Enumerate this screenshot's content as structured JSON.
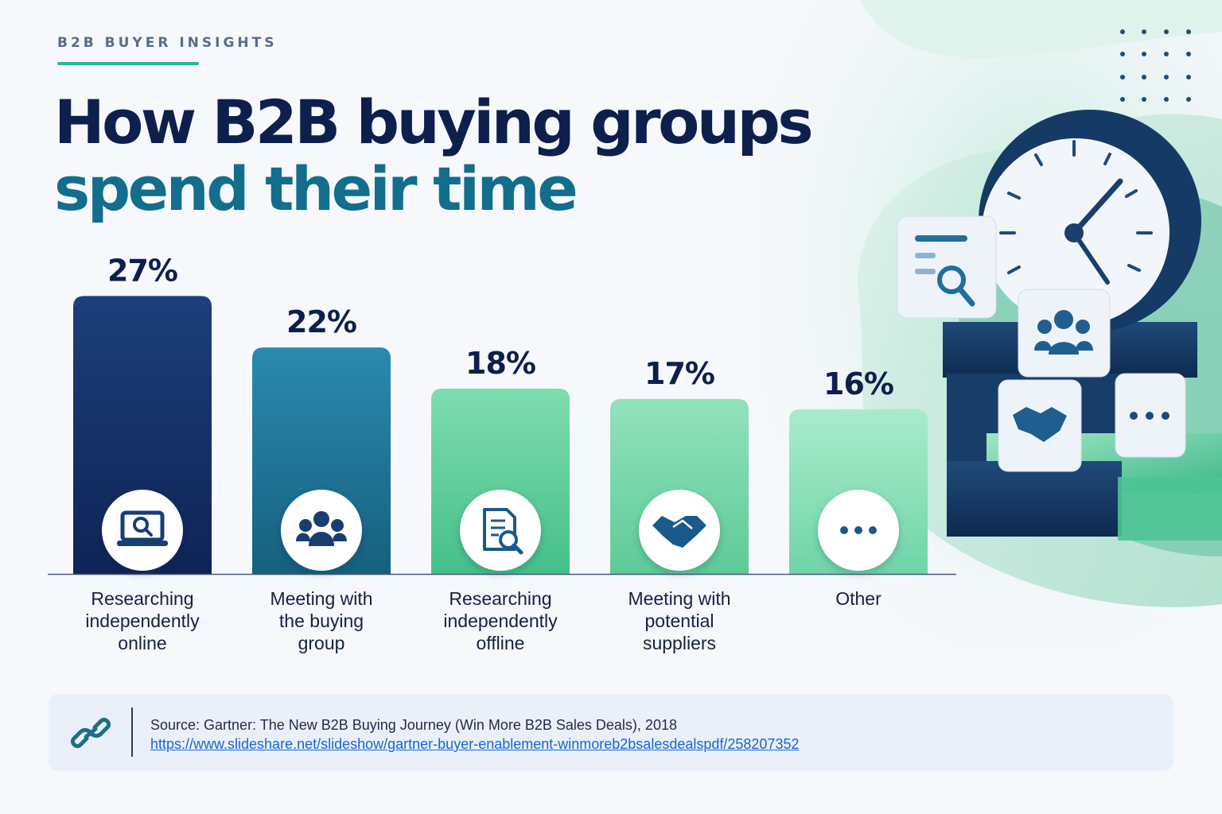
{
  "header": {
    "eyebrow": "B2B BUYER INSIGHTS",
    "title_line1": "How B2B buying groups",
    "title_line2": "spend their time"
  },
  "colors": {
    "title_dark": "#0d1f4d",
    "title_teal": "#126e8c",
    "accent_green": "#2fb88a"
  },
  "chart_data": {
    "type": "bar",
    "categories": [
      [
        "Researching",
        "independently",
        "online"
      ],
      [
        "Meeting with",
        "the buying",
        "group"
      ],
      [
        "Researching",
        "independently",
        "offline"
      ],
      [
        "Meeting with",
        "potential",
        "suppliers"
      ],
      [
        "Other"
      ]
    ],
    "values": [
      27,
      22,
      18,
      17,
      16
    ],
    "value_labels": [
      "27%",
      "22%",
      "18%",
      "17%",
      "16%"
    ],
    "icons": [
      "laptop-search-icon",
      "people-icon",
      "document-search-icon",
      "handshake-icon",
      "more-dots-icon"
    ],
    "bar_colors": [
      [
        "#1c3f7a",
        "#0e2456"
      ],
      [
        "#2a8ab0",
        "#16607e"
      ],
      [
        "#7fdcaf",
        "#45c08a"
      ],
      [
        "#92e2bc",
        "#5dcb98"
      ],
      [
        "#a9ebcc",
        "#6fd5a7"
      ]
    ],
    "grid": false,
    "legend": "none"
  },
  "source": {
    "text": "Source: Gartner: The New B2B Buying Journey (Win More B2B Sales Deals), 2018",
    "url": "https://www.slideshare.net/slideshow/gartner-buyer-enablement-winmoreb2bsalesdealspdf/258207352"
  }
}
